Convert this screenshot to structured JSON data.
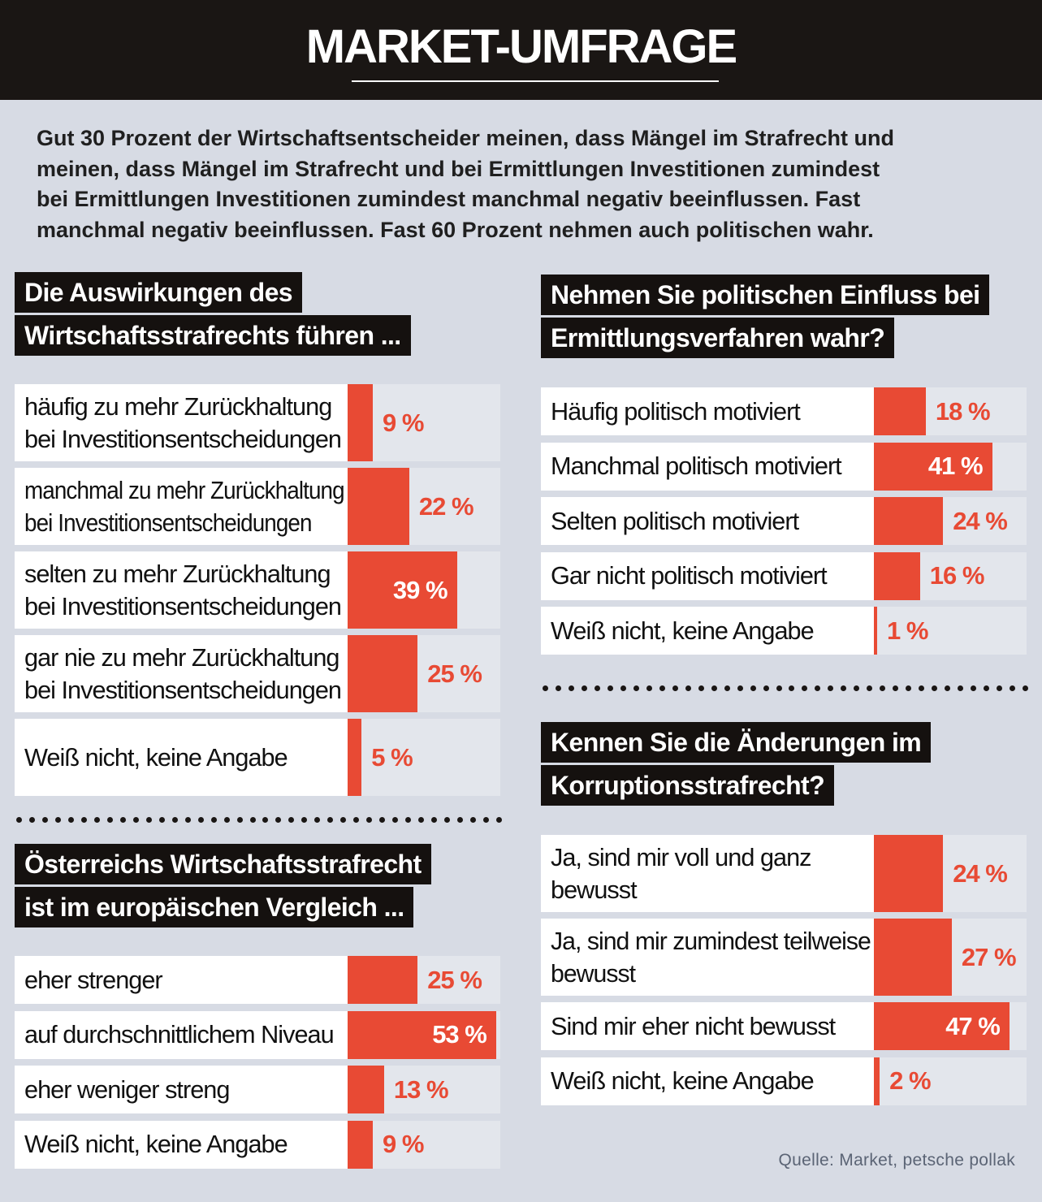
{
  "header": {
    "title": "MARKET-UMFRAGE"
  },
  "intro": {
    "lines": [
      "Gut 30 Prozent der Wirtschaftsentscheider meinen, dass Mängel im Strafrecht und",
      "meinen, dass Mängel im Strafrecht und  bei Ermittlungen Investitionen zumindest",
      "bei Ermittlungen Investitionen zumindest manchmal negativ beeinflussen. Fast",
      "manchmal negativ beeinflussen. Fast  60 Prozent nehmen auch politischen wahr."
    ]
  },
  "chart_data": [
    {
      "type": "bar",
      "title": [
        "Die Auswirkungen des",
        "Wirtschaftsstrafrechts führen ..."
      ],
      "categories": [
        [
          "häufig zu mehr Zurückhaltung",
          "bei Investitionsentscheidungen"
        ],
        [
          "manchmal zu mehr Zurückhaltung",
          "bei Investitionsentscheidungen"
        ],
        [
          "selten zu mehr Zurückhaltung",
          "bei Investitionsentscheidungen"
        ],
        [
          "gar nie zu mehr Zurückhaltung",
          "bei Investitionsentscheidungen"
        ],
        [
          "Weiß nicht, keine Angabe"
        ]
      ],
      "values": [
        9,
        22,
        39,
        25,
        5
      ],
      "labels": [
        "9 %",
        "22 %",
        "39 %",
        "25 %",
        "5 %"
      ],
      "unit": "%"
    },
    {
      "type": "bar",
      "title": [
        "Österreichs Wirtschaftsstrafrecht",
        "ist im europäischen Vergleich ..."
      ],
      "categories": [
        [
          "eher strenger"
        ],
        [
          "auf durchschnittlichem Niveau"
        ],
        [
          "eher weniger streng"
        ],
        [
          "Weiß nicht, keine Angabe"
        ]
      ],
      "values": [
        25,
        53,
        13,
        9
      ],
      "labels": [
        "25 %",
        "53 %",
        "13 %",
        "9 %"
      ],
      "unit": "%"
    },
    {
      "type": "bar",
      "title": [
        "Nehmen Sie politischen Einfluss bei",
        "Ermittlungsverfahren wahr?"
      ],
      "categories": [
        [
          "Häufig politisch motiviert"
        ],
        [
          "Manchmal politisch motiviert"
        ],
        [
          "Selten politisch motiviert"
        ],
        [
          "Gar nicht politisch motiviert"
        ],
        [
          "Weiß nicht, keine Angabe"
        ]
      ],
      "values": [
        18,
        41,
        24,
        16,
        1
      ],
      "labels": [
        "18 %",
        "41 %",
        "24 %",
        "16 %",
        "1 %"
      ],
      "unit": "%"
    },
    {
      "type": "bar",
      "title": [
        "Kennen Sie die Änderungen im",
        "Korruptionsstrafrecht?"
      ],
      "categories": [
        [
          "Ja, sind mir voll und ganz",
          "bewusst"
        ],
        [
          "Ja, sind mir zumindest teilweise",
          "bewusst"
        ],
        [
          "Sind mir eher nicht bewusst"
        ],
        [
          "Weiß nicht, keine Angabe"
        ]
      ],
      "values": [
        24,
        27,
        47,
        2
      ],
      "labels": [
        "24 %",
        "27 %",
        "47 %",
        "2 %"
      ],
      "unit": "%"
    }
  ],
  "colors": {
    "bar": "#e84a34",
    "background": "#d7dbe4",
    "title_bg": "#15110f",
    "track": "#e3e6ec"
  },
  "source": "Quelle: Market, petsche pollak"
}
